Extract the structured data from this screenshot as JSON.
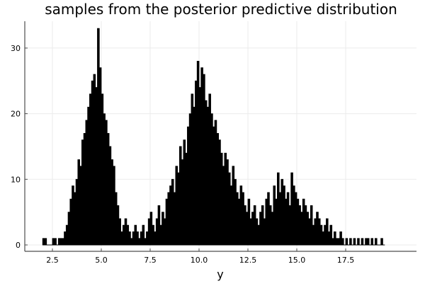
{
  "chart_data": {
    "type": "bar",
    "title": "samples from the posterior predictive distribution",
    "xlabel": "y",
    "ylabel": "",
    "xlim": [
      1.3,
      19.3
    ],
    "ylim": [
      -1,
      34
    ],
    "xticks": [
      2.5,
      5.0,
      7.5,
      10.0,
      12.5,
      15.0,
      17.5
    ],
    "xtick_labels": [
      "2.5",
      "5.0",
      "7.5",
      "10.0",
      "12.5",
      "15.0",
      "17.5"
    ],
    "yticks": [
      0,
      10,
      20,
      30
    ],
    "ytick_labels": [
      "0",
      "10",
      "20",
      "30"
    ],
    "grid": true,
    "legend": false,
    "bar_color": "#000000",
    "bin_start": 2.0,
    "bin_width": 0.1,
    "values": [
      1,
      1,
      0,
      0,
      0,
      1,
      1,
      0,
      1,
      1,
      1,
      2,
      3,
      5,
      7,
      9,
      8,
      10,
      13,
      12,
      16,
      17,
      19,
      21,
      23,
      25,
      26,
      24,
      33,
      27,
      23,
      20,
      19,
      17,
      15,
      13,
      12,
      8,
      6,
      4,
      2,
      3,
      4,
      3,
      2,
      1,
      2,
      3,
      2,
      1,
      2,
      3,
      1,
      2,
      4,
      5,
      3,
      2,
      4,
      6,
      3,
      5,
      4,
      7,
      8,
      9,
      10,
      8,
      12,
      11,
      15,
      13,
      16,
      14,
      18,
      20,
      23,
      21,
      25,
      28,
      24,
      27,
      26,
      22,
      21,
      23,
      20,
      18,
      19,
      17,
      16,
      14,
      12,
      14,
      13,
      11,
      9,
      12,
      10,
      8,
      7,
      9,
      8,
      6,
      5,
      7,
      4,
      5,
      6,
      4,
      3,
      5,
      6,
      4,
      7,
      8,
      6,
      5,
      9,
      7,
      11,
      8,
      10,
      9,
      7,
      8,
      6,
      11,
      9,
      8,
      7,
      6,
      5,
      7,
      6,
      5,
      4,
      6,
      3,
      4,
      5,
      4,
      3,
      2,
      3,
      4,
      2,
      3,
      1,
      2,
      1,
      1,
      2,
      1,
      0,
      1,
      0,
      1,
      0,
      1,
      0,
      1,
      0,
      1,
      0,
      1,
      1,
      0,
      1,
      0,
      1,
      0,
      0,
      1,
      0
    ],
    "colors": {
      "bar": "#000000",
      "grid": "#ebebeb",
      "axis": "#4d4d4d",
      "text": "#000000"
    }
  }
}
